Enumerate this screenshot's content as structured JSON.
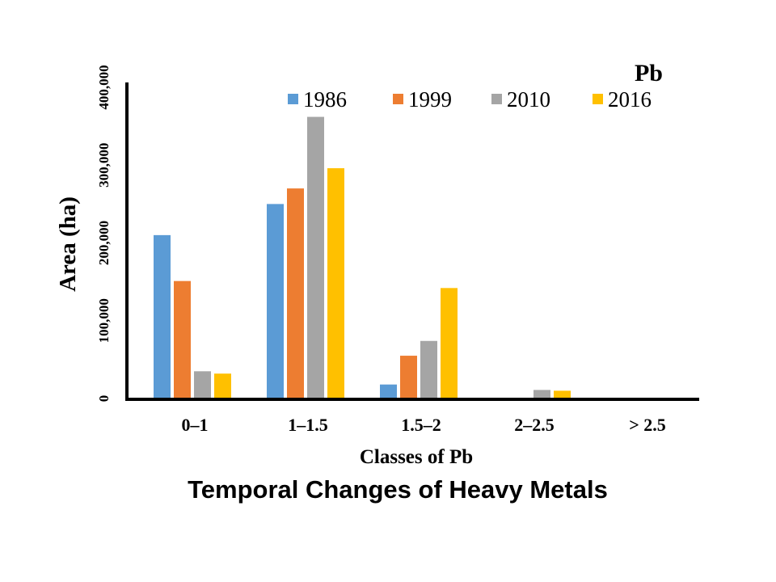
{
  "caption": "Temporal Changes of Heavy Metals",
  "chart_data": {
    "type": "bar",
    "title": "Pb",
    "xlabel": "Classes of Pb",
    "ylabel": "Area (ha)",
    "categories": [
      "0–1",
      "1–1.5",
      "1.5–2",
      "2–2.5",
      "> 2.5"
    ],
    "ylim": [
      0,
      400000
    ],
    "yticks": [
      0,
      100000,
      200000,
      300000,
      400000
    ],
    "ytick_labels": [
      "0",
      "100,000",
      "200,000",
      "300,000",
      "400,000"
    ],
    "grid": false,
    "legend_position": "top-right",
    "series": [
      {
        "name": "1986",
        "color": "#5B9BD5",
        "values": [
          210000,
          250000,
          18000,
          0,
          0
        ]
      },
      {
        "name": "1999",
        "color": "#ED7D31",
        "values": [
          151000,
          270000,
          55000,
          0,
          0
        ]
      },
      {
        "name": "2010",
        "color": "#A5A5A5",
        "values": [
          35000,
          362000,
          74000,
          11000,
          0
        ]
      },
      {
        "name": "2016",
        "color": "#FFC000",
        "values": [
          32000,
          296000,
          142000,
          10000,
          0
        ]
      }
    ]
  }
}
